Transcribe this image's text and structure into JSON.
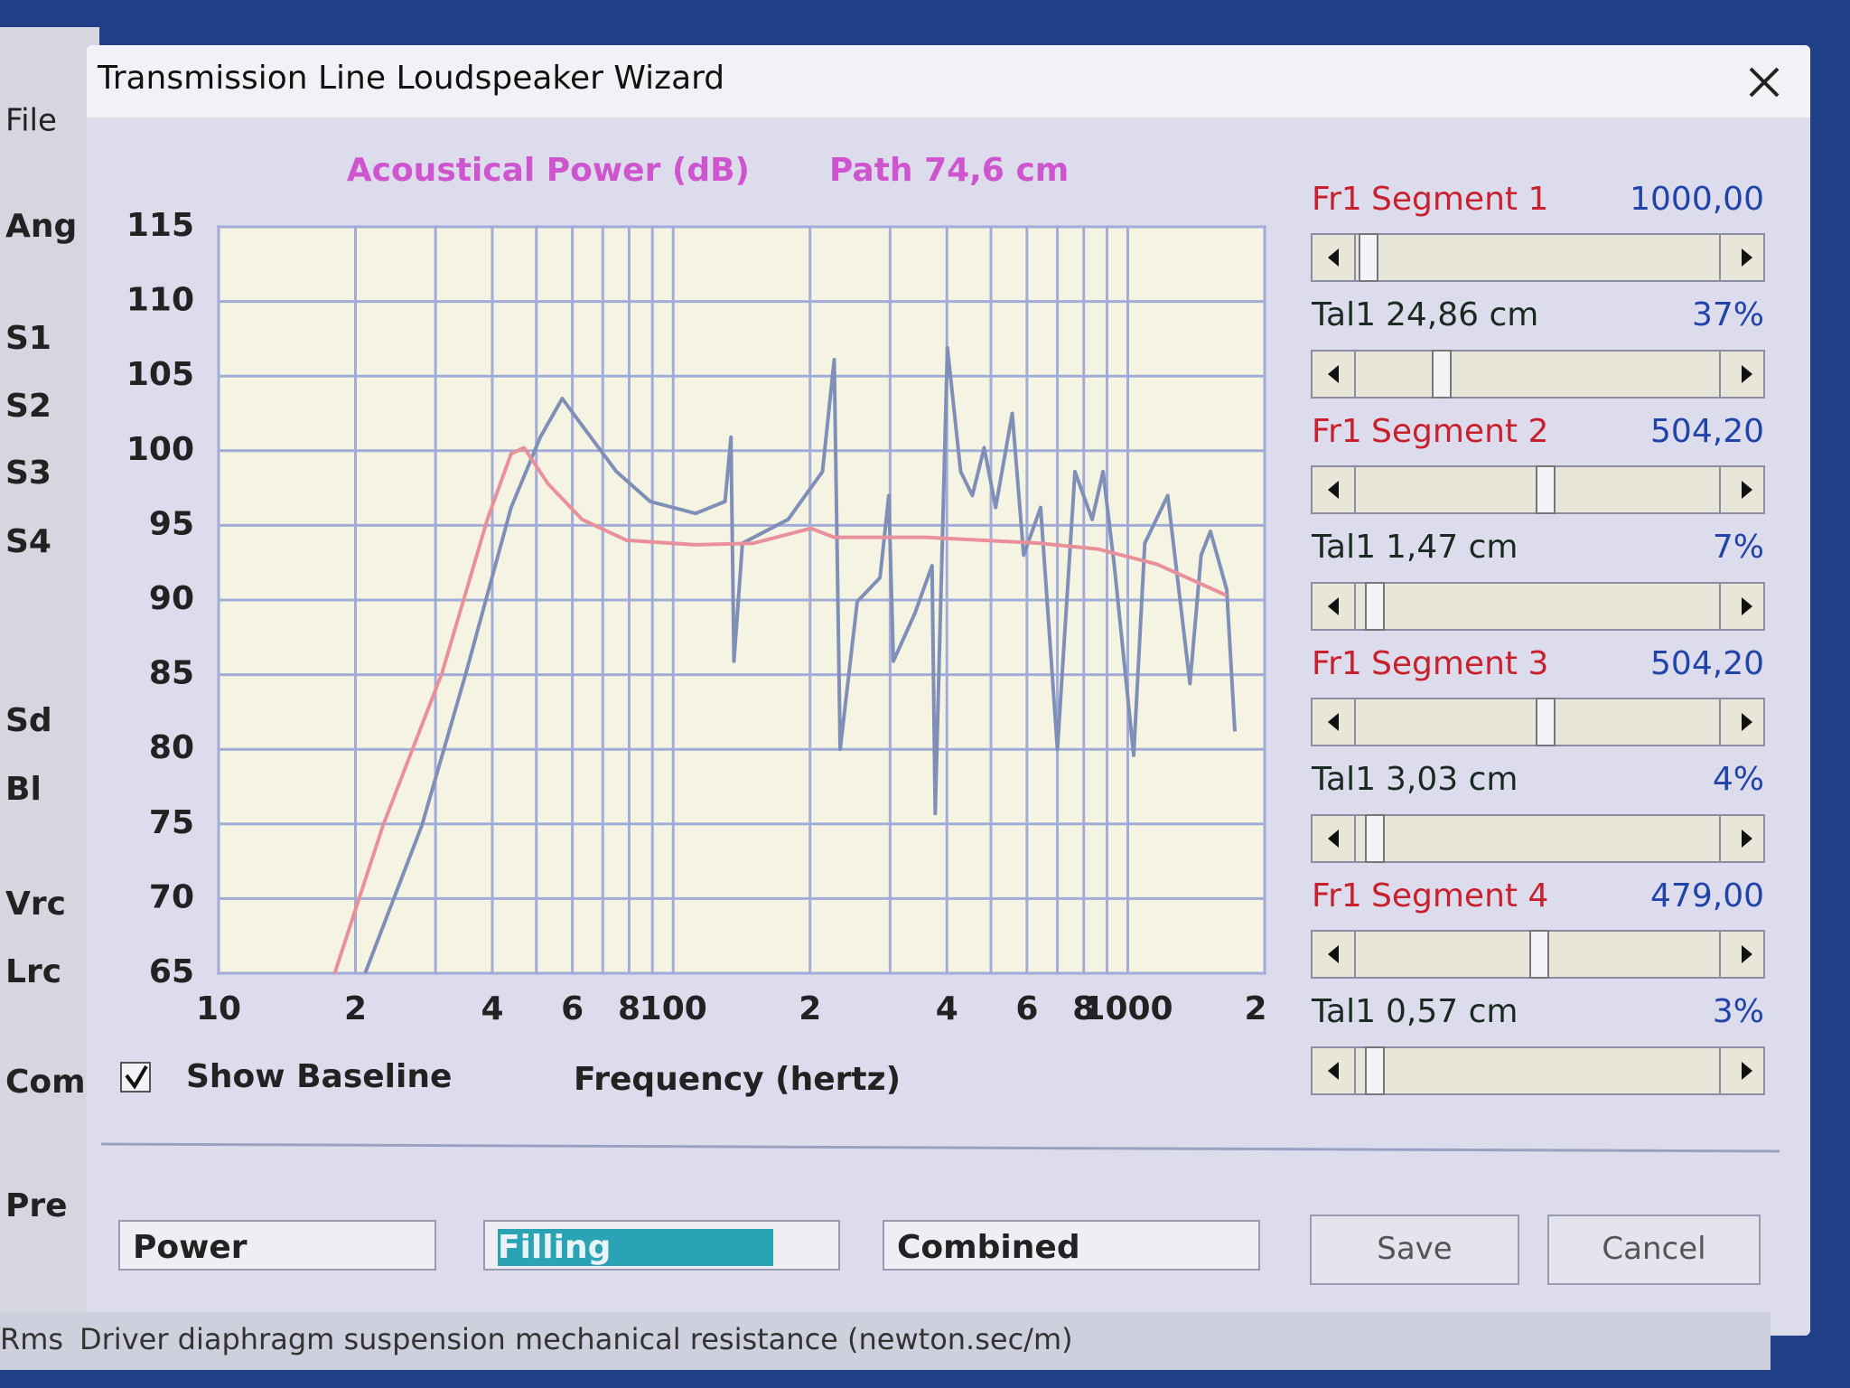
{
  "app": {
    "menu": "File",
    "labels": [
      "Ang",
      "S1",
      "S2",
      "S3",
      "S4",
      "Sd",
      "Bl",
      "Vrc",
      "Lrc",
      "Com",
      "Pre"
    ]
  },
  "window": {
    "title": "Transmission Line Loudspeaker Wizard"
  },
  "chart_data": {
    "type": "line",
    "title": "Acoustical Power (dB)",
    "subtitle": "Path 74,6 cm",
    "x_label": "Frequency (hertz)",
    "log_x": true,
    "grid": true,
    "xlim": [
      10,
      2000
    ],
    "ylim": [
      65,
      115
    ],
    "xticks": [
      10,
      {
        "value": 20,
        "label": "2"
      },
      {
        "value": 40,
        "label": "4"
      },
      {
        "value": 60,
        "label": "6"
      },
      {
        "value": 80,
        "label": "8"
      },
      100,
      {
        "value": 200,
        "label": "2"
      },
      {
        "value": 400,
        "label": "4"
      },
      {
        "value": 600,
        "label": "6"
      },
      {
        "value": 800,
        "label": "8"
      },
      1000,
      {
        "value": 2000,
        "label": "2"
      }
    ],
    "x_minor_grid": [
      30,
      50,
      70,
      90,
      300,
      500,
      700,
      900
    ],
    "yticks": [
      65,
      70,
      75,
      80,
      85,
      90,
      95,
      100,
      105,
      110,
      115
    ],
    "series": [
      {
        "color": "#7f8fb8",
        "x": [
          21,
          28,
          35,
          44,
          51,
          57,
          63,
          75,
          89,
          112,
          130,
          134,
          136,
          142,
          179,
          213,
          226,
          233,
          254,
          285,
          298,
          305,
          340,
          371,
          377,
          401,
          429,
          455,
          483,
          512,
          557,
          590,
          643,
          700,
          765,
          835,
          882,
          934,
          1030,
          1090,
          1224,
          1295,
          1370,
          1450,
          1520,
          1650,
          1720
        ],
        "values": [
          65,
          74.9,
          85.1,
          96.2,
          100.9,
          103.5,
          101.7,
          98.6,
          96.6,
          95.8,
          96.6,
          100.9,
          85.9,
          93.8,
          95.4,
          98.6,
          106.1,
          80,
          89.9,
          91.5,
          97,
          85.9,
          89.1,
          92.3,
          75.7,
          106.9,
          98.6,
          97,
          100.2,
          96.2,
          102.5,
          93,
          96.2,
          80,
          98.6,
          95.4,
          98.6,
          92.3,
          79.6,
          93.8,
          97,
          90.7,
          84.4,
          93,
          94.6,
          90.7,
          81.2
        ]
      },
      {
        "color": "#e8909c",
        "x": [
          18,
          23,
          31,
          39,
          44,
          47,
          53,
          63,
          79,
          112,
          150,
          201,
          226,
          359,
          643,
          863,
          1160,
          1650
        ],
        "values": [
          65,
          74.9,
          85.1,
          95.4,
          99.8,
          100.2,
          97.8,
          95.4,
          94,
          93.7,
          93.8,
          94.8,
          94.2,
          94.2,
          93.8,
          93.4,
          92.4,
          90.3
        ]
      }
    ]
  },
  "segments": [
    {
      "fr_label": "Fr1",
      "segment": "Segment 1",
      "fr_value": "1000,00",
      "tal_label": "Tal1",
      "tal_value": "24,86 cm",
      "tal_percent": "37%"
    },
    {
      "fr_label": "Fr1",
      "segment": "Segment 2",
      "fr_value": "504,20",
      "tal_label": "Tal1",
      "tal_value": "1,47 cm",
      "tal_percent": "7%"
    },
    {
      "fr_label": "Fr1",
      "segment": "Segment 3",
      "fr_value": "504,20",
      "tal_label": "Tal1",
      "tal_value": "3,03 cm",
      "tal_percent": "4%"
    },
    {
      "fr_label": "Fr1",
      "segment": "Segment 4",
      "fr_value": "479,00",
      "tal_label": "Tal1",
      "tal_value": "0,57 cm",
      "tal_percent": "3%"
    }
  ],
  "show_baseline": {
    "label": "Show Baseline",
    "checked": true
  },
  "dropdowns": [
    "Power",
    "Filling",
    "Combined"
  ],
  "buttons": [
    "Save",
    "Cancel"
  ],
  "status": {
    "field": "Rms",
    "description": "Driver diaphragm suspension mechanical resistance  (newton.sec/m)"
  }
}
